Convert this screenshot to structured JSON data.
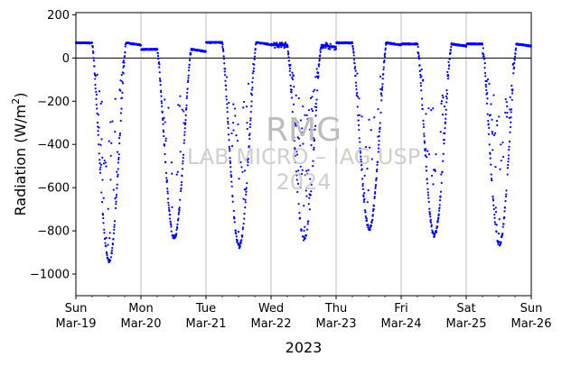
{
  "chart_data": {
    "type": "scatter",
    "title": "",
    "xlabel": "2023",
    "ylabel": "Radiation (W/m",
    "ylabel_superscript": "2",
    "ylabel_close": ")",
    "xlim": [
      "2023-03-19",
      "2023-03-26"
    ],
    "ylim": [
      -1100,
      210
    ],
    "yticks": [
      200,
      0,
      -200,
      -400,
      -600,
      -800,
      -1000
    ],
    "ytick_labels": [
      "200",
      "0",
      "−200",
      "−400",
      "−600",
      "−800",
      "−1000"
    ],
    "xticks": [
      {
        "date": "2023-03-19",
        "day": "Sun",
        "label": "Mar-19"
      },
      {
        "date": "2023-03-20",
        "day": "Mon",
        "label": "Mar-20"
      },
      {
        "date": "2023-03-21",
        "day": "Tue",
        "label": "Mar-21"
      },
      {
        "date": "2023-03-22",
        "day": "Wed",
        "label": "Mar-22"
      },
      {
        "date": "2023-03-23",
        "day": "Thu",
        "label": "Mar-23"
      },
      {
        "date": "2023-03-24",
        "day": "Fri",
        "label": "Mar-24"
      },
      {
        "date": "2023-03-25",
        "day": "Sat",
        "label": "Mar-25"
      },
      {
        "date": "2023-03-26",
        "day": "Sun",
        "label": "Mar-26"
      }
    ],
    "grid": "x-major",
    "zero_line": true,
    "marker_color": "#0000ff",
    "days": [
      {
        "date": "2023-03-19",
        "night_level": 70,
        "min": -940,
        "scatter": 0.12
      },
      {
        "date": "2023-03-20",
        "night_level": 40,
        "min": -830,
        "scatter": 0.05
      },
      {
        "date": "2023-03-21",
        "night_level": 72,
        "min": -870,
        "scatter": 0.08
      },
      {
        "date": "2023-03-22",
        "night_level": 60,
        "min": -840,
        "scatter": 0.18
      },
      {
        "date": "2023-03-23",
        "night_level": 70,
        "min": -790,
        "scatter": 0.1
      },
      {
        "date": "2023-03-24",
        "night_level": 65,
        "min": -820,
        "scatter": 0.12
      },
      {
        "date": "2023-03-25",
        "night_level": 65,
        "min": -860,
        "scatter": 0.14
      }
    ]
  },
  "watermark": {
    "line1": "RMG",
    "line2": "LAB MICRO – IAG USP",
    "line3": "2024"
  }
}
